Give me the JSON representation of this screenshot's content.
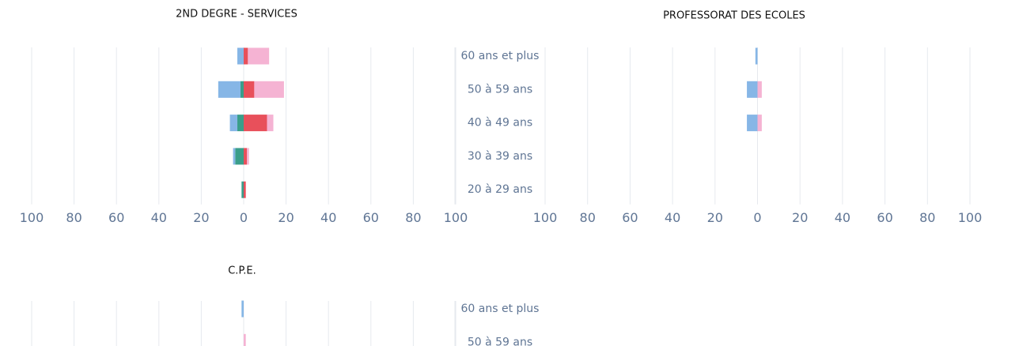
{
  "chart_data": [
    {
      "type": "pyramid",
      "title": "2ND DEGRE - SERVICES",
      "categories": [
        "60 ans et plus",
        "50 à 59 ans",
        "40 à 49 ans",
        "30 à 39 ans",
        "20 à 29 ans"
      ],
      "series": [
        {
          "color": "#3a9e8a",
          "values": [
            0,
            -1.5,
            -3,
            -4,
            -1
          ]
        },
        {
          "color": "#86b6e6",
          "values": [
            -3,
            -10.5,
            -3.5,
            -1,
            0
          ]
        },
        {
          "color": "#e8505b",
          "values": [
            2,
            5,
            11,
            1.5,
            1
          ]
        },
        {
          "color": "#f5b3d3",
          "values": [
            10,
            14,
            3,
            1,
            0
          ]
        }
      ],
      "xlim": [
        -100,
        100
      ],
      "xticks": [
        {
          "value": -100,
          "label": "100"
        },
        {
          "value": -80,
          "label": "80"
        },
        {
          "value": -60,
          "label": "60"
        },
        {
          "value": -40,
          "label": "40"
        },
        {
          "value": -20,
          "label": "20"
        },
        0,
        20,
        40,
        60,
        80,
        100
      ],
      "grid": true
    },
    {
      "type": "pyramid",
      "title": "PROFESSORAT DES ECOLES",
      "series": [
        {
          "color": "#86b6e6",
          "values": [
            -1,
            -5,
            -5,
            0,
            0
          ]
        },
        {
          "color": "#f5b3d3",
          "values": [
            0,
            2,
            2,
            0,
            0
          ]
        }
      ],
      "xlim": [
        -100,
        100
      ],
      "xticks": [
        {
          "value": -100,
          "label": "100"
        },
        {
          "value": -80,
          "label": "80"
        },
        {
          "value": -60,
          "label": "60"
        },
        {
          "value": -40,
          "label": "40"
        },
        {
          "value": -20,
          "label": "20"
        },
        0,
        20,
        40,
        60,
        80,
        100
      ],
      "grid": true
    },
    {
      "type": "pyramid",
      "title": "C.P.E.",
      "categories": [
        "60 ans et plus",
        "50 à 59 ans"
      ],
      "series": [
        {
          "color": "#86b6e6",
          "values": [
            -1,
            0
          ]
        },
        {
          "color": "#f5b3d3",
          "values": [
            0,
            1
          ]
        }
      ],
      "xlim": [
        -100,
        100
      ],
      "xticks": [
        -100,
        -80,
        -60,
        -40,
        -20,
        0,
        20,
        40,
        60,
        80,
        100
      ],
      "grid": true
    }
  ]
}
